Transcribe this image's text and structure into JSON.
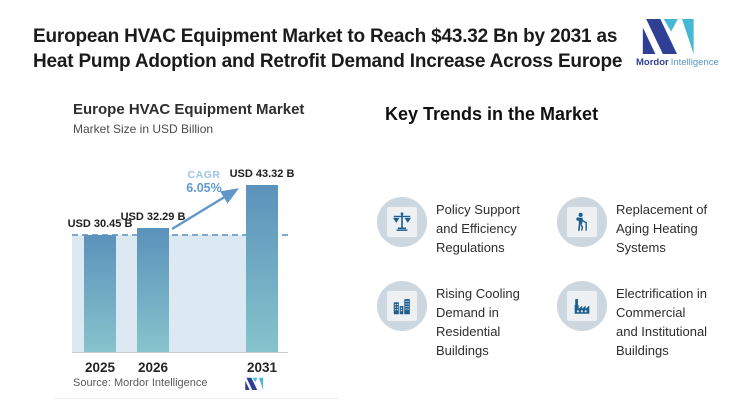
{
  "header": {
    "title": "European HVAC Equipment Market to Reach $43.32 Bn by 2031 as\nHeat Pump Adoption and Retrofit Demand Increase Across Europe"
  },
  "logo": {
    "word1": "Mordor",
    "word2": "Intelligence",
    "navy": "#2e3f94",
    "teal": "#45b8d5"
  },
  "chart": {
    "title": "Europe HVAC Equipment Market",
    "subtitle": "Market Size in USD Billion",
    "source": "Source: Mordor Intelligence",
    "cagr_label": "CAGR",
    "cagr_value": "6.05%"
  },
  "chart_data": {
    "type": "bar",
    "title": "Europe HVAC Equipment Market",
    "subtitle": "Market Size in USD Billion",
    "categories": [
      "2025",
      "2026",
      "2031"
    ],
    "values": [
      30.45,
      32.29,
      43.32
    ],
    "value_labels": [
      "USD 30.45 B",
      "USD 32.29 B",
      "USD 43.32 B"
    ],
    "cagr": "6.05%",
    "annotations": [
      "CAGR 6.05% arrow from 2026 bar to 2031 bar",
      "dashed reference line at 2025 value with shaded band below"
    ],
    "ylim": [
      0,
      43.32
    ],
    "grid": "off",
    "bar_gradient_top": "#5b92bb",
    "bar_gradient_bottom": "#85c4cc",
    "band_color": "#dde9f2",
    "dash_color": "#7fa9cc",
    "arrow_color": "#6096c8"
  },
  "trends": {
    "heading": "Key Trends in the Market",
    "icon_circle_color": "#ccd7e0",
    "icon_glyph_color": "#1d5e8e",
    "items": [
      {
        "icon": "scales-icon",
        "text": "Policy Support\nand Efficiency\nRegulations"
      },
      {
        "icon": "elderly-person-icon",
        "text": "Replacement of\nAging Heating\nSystems"
      },
      {
        "icon": "buildings-icon",
        "text": "Rising Cooling\nDemand in\nResidential\nBuildings"
      },
      {
        "icon": "factory-icon",
        "text": "Electrification in\nCommercial\nand Institutional\nBuildings"
      }
    ]
  }
}
